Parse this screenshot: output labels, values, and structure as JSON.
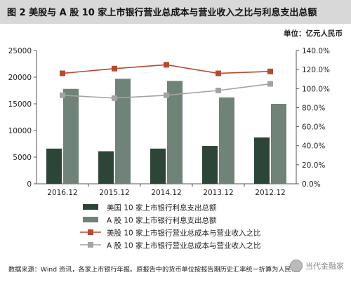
{
  "title": "图 2  美股与 A 股 10 家上市银行营业总成本与营业收入之比与利息支出总额",
  "unit": "单位：亿元人民币",
  "footer": "数据来源：Wind 资讯，各家上市银行年报。原报告中的货币单位按报告期历史汇率统一折算为人民币。",
  "watermark": "当代金融家",
  "colors": {
    "us_bar": "#2c4537",
    "a_bar": "#6f8378",
    "us_line": "#b84a30",
    "a_line": "#a3a3a3",
    "title_bg": "#d8d8d8"
  },
  "chart_data": {
    "type": "bar",
    "categories": [
      "2016.12",
      "2015.12",
      "2014.12",
      "2013.12",
      "2012.12"
    ],
    "y_left": {
      "range": [
        0,
        25000
      ],
      "ticks": [
        "0",
        "5000",
        "10000",
        "15000",
        "20000",
        "25000"
      ]
    },
    "y_right": {
      "range": [
        0,
        140
      ],
      "ticks": [
        "0.0%",
        "20.0%",
        "40.0%",
        "60.0%",
        "80.0%",
        "100.0%",
        "120.0%",
        "140.0%"
      ]
    },
    "series": [
      {
        "name": "美国 10 家上市银行利息支出总额",
        "type": "bar",
        "axis": "left",
        "values": [
          6600,
          6100,
          6600,
          7100,
          8700
        ]
      },
      {
        "name": "A 股 10 家上市银行利息支出总额",
        "type": "bar",
        "axis": "left",
        "values": [
          17800,
          19700,
          19300,
          16200,
          15000
        ]
      },
      {
        "name": "美股 10 家上市银行营业总成本与营业收入之比",
        "type": "line",
        "axis": "right",
        "values": [
          116,
          121,
          125,
          116,
          118
        ]
      },
      {
        "name": "A 股 10 家上市银行营业总成本与营业收入之比",
        "type": "line",
        "axis": "right",
        "values": [
          93,
          90,
          93,
          98,
          105
        ]
      }
    ],
    "legend_position": "bottom",
    "grid": false
  }
}
